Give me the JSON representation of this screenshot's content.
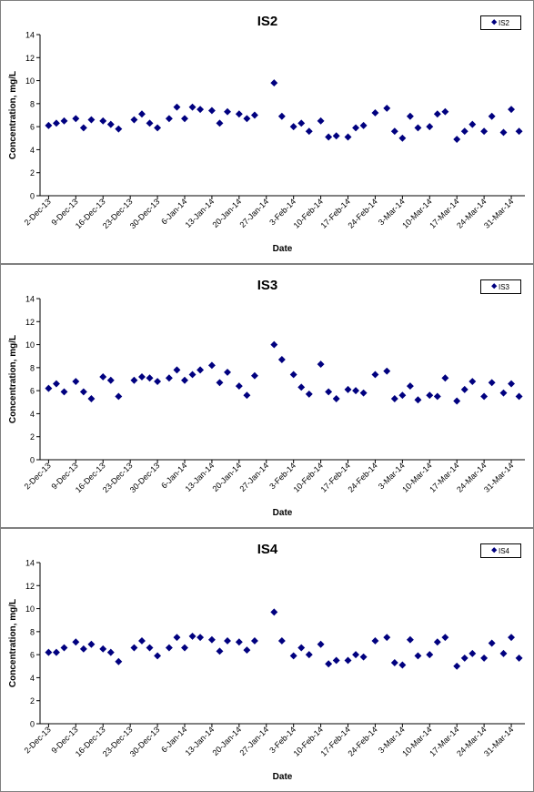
{
  "colors": {
    "marker": "#00007f",
    "axis": "#000000",
    "frame": "#808080"
  },
  "chart_data": [
    {
      "type": "scatter",
      "title": "IS2",
      "xlabel": "Date",
      "ylabel": "Concentration, mg/L",
      "legend": "IS2",
      "legend_position": "top-right",
      "grid": false,
      "ylim": [
        0,
        14
      ],
      "y_ticks": [
        "0",
        "2",
        "4",
        "6",
        "8",
        "10",
        "12",
        "14"
      ],
      "x_tick_labels": [
        "2-Dec-13",
        "9-Dec-13",
        "16-Dec-13",
        "23-Dec-13",
        "30-Dec-13",
        "6-Jan-14",
        "13-Jan-14",
        "20-Jan-14",
        "27-Jan-14",
        "3-Feb-14",
        "10-Feb-14",
        "17-Feb-14",
        "24-Feb-14",
        "3-Mar-14",
        "10-Mar-14",
        "17-Mar-14",
        "24-Mar-14",
        "31-Mar-14"
      ],
      "points": [
        [
          "2013-12-02",
          6.1
        ],
        [
          "2013-12-04",
          6.3
        ],
        [
          "2013-12-06",
          6.5
        ],
        [
          "2013-12-09",
          6.7
        ],
        [
          "2013-12-11",
          5.9
        ],
        [
          "2013-12-13",
          6.6
        ],
        [
          "2013-12-16",
          6.5
        ],
        [
          "2013-12-18",
          6.2
        ],
        [
          "2013-12-20",
          5.8
        ],
        [
          "2013-12-24",
          6.6
        ],
        [
          "2013-12-26",
          7.1
        ],
        [
          "2013-12-28",
          6.3
        ],
        [
          "2013-12-30",
          5.9
        ],
        [
          "2014-01-02",
          6.7
        ],
        [
          "2014-01-04",
          7.7
        ],
        [
          "2014-01-06",
          6.7
        ],
        [
          "2014-01-08",
          7.7
        ],
        [
          "2014-01-10",
          7.5
        ],
        [
          "2014-01-13",
          7.4
        ],
        [
          "2014-01-15",
          6.3
        ],
        [
          "2014-01-17",
          7.3
        ],
        [
          "2014-01-20",
          7.1
        ],
        [
          "2014-01-22",
          6.7
        ],
        [
          "2014-01-24",
          7.0
        ],
        [
          "2014-01-29",
          9.8
        ],
        [
          "2014-01-31",
          6.9
        ],
        [
          "2014-02-03",
          6.0
        ],
        [
          "2014-02-05",
          6.3
        ],
        [
          "2014-02-07",
          5.6
        ],
        [
          "2014-02-10",
          6.5
        ],
        [
          "2014-02-12",
          5.1
        ],
        [
          "2014-02-14",
          5.2
        ],
        [
          "2014-02-17",
          5.1
        ],
        [
          "2014-02-19",
          5.9
        ],
        [
          "2014-02-21",
          6.1
        ],
        [
          "2014-02-24",
          7.2
        ],
        [
          "2014-02-27",
          7.6
        ],
        [
          "2014-03-01",
          5.6
        ],
        [
          "2014-03-03",
          5.0
        ],
        [
          "2014-03-05",
          6.9
        ],
        [
          "2014-03-07",
          5.9
        ],
        [
          "2014-03-10",
          6.0
        ],
        [
          "2014-03-12",
          7.1
        ],
        [
          "2014-03-14",
          7.3
        ],
        [
          "2014-03-17",
          4.9
        ],
        [
          "2014-03-19",
          5.6
        ],
        [
          "2014-03-21",
          6.2
        ],
        [
          "2014-03-24",
          5.6
        ],
        [
          "2014-03-26",
          6.9
        ],
        [
          "2014-03-29",
          5.5
        ],
        [
          "2014-03-31",
          7.5
        ],
        [
          "2014-04-02",
          5.6
        ]
      ]
    },
    {
      "type": "scatter",
      "title": "IS3",
      "xlabel": "Date",
      "ylabel": "Concentration, mg/L",
      "legend": "IS3",
      "legend_position": "top-right",
      "grid": false,
      "ylim": [
        0,
        14
      ],
      "y_ticks": [
        "0",
        "2",
        "4",
        "6",
        "8",
        "10",
        "12",
        "14"
      ],
      "x_tick_labels": [
        "2-Dec-13",
        "9-Dec-13",
        "16-Dec-13",
        "23-Dec-13",
        "30-Dec-13",
        "6-Jan-14",
        "13-Jan-14",
        "20-Jan-14",
        "27-Jan-14",
        "3-Feb-14",
        "10-Feb-14",
        "17-Feb-14",
        "24-Feb-14",
        "3-Mar-14",
        "10-Mar-14",
        "17-Mar-14",
        "24-Mar-14",
        "31-Mar-14"
      ],
      "points": [
        [
          "2013-12-02",
          6.2
        ],
        [
          "2013-12-04",
          6.6
        ],
        [
          "2013-12-06",
          5.9
        ],
        [
          "2013-12-09",
          6.8
        ],
        [
          "2013-12-11",
          5.9
        ],
        [
          "2013-12-13",
          5.3
        ],
        [
          "2013-12-16",
          7.2
        ],
        [
          "2013-12-18",
          6.9
        ],
        [
          "2013-12-20",
          5.5
        ],
        [
          "2013-12-24",
          6.9
        ],
        [
          "2013-12-26",
          7.2
        ],
        [
          "2013-12-28",
          7.1
        ],
        [
          "2013-12-30",
          6.8
        ],
        [
          "2014-01-02",
          7.1
        ],
        [
          "2014-01-04",
          7.8
        ],
        [
          "2014-01-06",
          6.9
        ],
        [
          "2014-01-08",
          7.4
        ],
        [
          "2014-01-10",
          7.8
        ],
        [
          "2014-01-13",
          8.2
        ],
        [
          "2014-01-15",
          6.7
        ],
        [
          "2014-01-17",
          7.6
        ],
        [
          "2014-01-20",
          6.4
        ],
        [
          "2014-01-22",
          5.6
        ],
        [
          "2014-01-24",
          7.3
        ],
        [
          "2014-01-29",
          10.0
        ],
        [
          "2014-01-31",
          8.7
        ],
        [
          "2014-02-03",
          7.4
        ],
        [
          "2014-02-05",
          6.3
        ],
        [
          "2014-02-07",
          5.7
        ],
        [
          "2014-02-10",
          8.3
        ],
        [
          "2014-02-12",
          5.9
        ],
        [
          "2014-02-14",
          5.3
        ],
        [
          "2014-02-17",
          6.1
        ],
        [
          "2014-02-19",
          6.0
        ],
        [
          "2014-02-21",
          5.8
        ],
        [
          "2014-02-24",
          7.4
        ],
        [
          "2014-02-27",
          7.7
        ],
        [
          "2014-03-01",
          5.3
        ],
        [
          "2014-03-03",
          5.6
        ],
        [
          "2014-03-05",
          6.4
        ],
        [
          "2014-03-07",
          5.2
        ],
        [
          "2014-03-10",
          5.6
        ],
        [
          "2014-03-12",
          5.5
        ],
        [
          "2014-03-14",
          7.1
        ],
        [
          "2014-03-17",
          5.1
        ],
        [
          "2014-03-19",
          6.1
        ],
        [
          "2014-03-21",
          6.8
        ],
        [
          "2014-03-24",
          5.5
        ],
        [
          "2014-03-26",
          6.7
        ],
        [
          "2014-03-29",
          5.8
        ],
        [
          "2014-03-31",
          6.6
        ],
        [
          "2014-04-02",
          5.5
        ]
      ]
    },
    {
      "type": "scatter",
      "title": "IS4",
      "xlabel": "Date",
      "ylabel": "Concentration, mg/L",
      "legend": "IS4",
      "legend_position": "top-right",
      "grid": false,
      "ylim": [
        0,
        14
      ],
      "y_ticks": [
        "0",
        "2",
        "4",
        "6",
        "8",
        "10",
        "12",
        "14"
      ],
      "x_tick_labels": [
        "2-Dec-13",
        "9-Dec-13",
        "16-Dec-13",
        "23-Dec-13",
        "30-Dec-13",
        "6-Jan-14",
        "13-Jan-14",
        "20-Jan-14",
        "27-Jan-14",
        "3-Feb-14",
        "10-Feb-14",
        "17-Feb-14",
        "24-Feb-14",
        "3-Mar-14",
        "10-Mar-14",
        "17-Mar-14",
        "24-Mar-14",
        "31-Mar-14"
      ],
      "points": [
        [
          "2013-12-02",
          6.2
        ],
        [
          "2013-12-04",
          6.2
        ],
        [
          "2013-12-06",
          6.6
        ],
        [
          "2013-12-09",
          7.1
        ],
        [
          "2013-12-11",
          6.5
        ],
        [
          "2013-12-13",
          6.9
        ],
        [
          "2013-12-16",
          6.5
        ],
        [
          "2013-12-18",
          6.2
        ],
        [
          "2013-12-20",
          5.4
        ],
        [
          "2013-12-24",
          6.6
        ],
        [
          "2013-12-26",
          7.2
        ],
        [
          "2013-12-28",
          6.6
        ],
        [
          "2013-12-30",
          5.9
        ],
        [
          "2014-01-02",
          6.6
        ],
        [
          "2014-01-04",
          7.5
        ],
        [
          "2014-01-06",
          6.6
        ],
        [
          "2014-01-08",
          7.6
        ],
        [
          "2014-01-10",
          7.5
        ],
        [
          "2014-01-13",
          7.3
        ],
        [
          "2014-01-15",
          6.3
        ],
        [
          "2014-01-17",
          7.2
        ],
        [
          "2014-01-20",
          7.1
        ],
        [
          "2014-01-22",
          6.4
        ],
        [
          "2014-01-24",
          7.2
        ],
        [
          "2014-01-29",
          9.7
        ],
        [
          "2014-01-31",
          7.2
        ],
        [
          "2014-02-03",
          5.9
        ],
        [
          "2014-02-05",
          6.6
        ],
        [
          "2014-02-07",
          6.0
        ],
        [
          "2014-02-10",
          6.9
        ],
        [
          "2014-02-12",
          5.2
        ],
        [
          "2014-02-14",
          5.5
        ],
        [
          "2014-02-17",
          5.5
        ],
        [
          "2014-02-19",
          6.0
        ],
        [
          "2014-02-21",
          5.8
        ],
        [
          "2014-02-24",
          7.2
        ],
        [
          "2014-02-27",
          7.5
        ],
        [
          "2014-03-01",
          5.3
        ],
        [
          "2014-03-03",
          5.1
        ],
        [
          "2014-03-05",
          7.3
        ],
        [
          "2014-03-07",
          5.9
        ],
        [
          "2014-03-10",
          6.0
        ],
        [
          "2014-03-12",
          7.1
        ],
        [
          "2014-03-14",
          7.5
        ],
        [
          "2014-03-17",
          5.0
        ],
        [
          "2014-03-19",
          5.7
        ],
        [
          "2014-03-21",
          6.1
        ],
        [
          "2014-03-24",
          5.7
        ],
        [
          "2014-03-26",
          7.0
        ],
        [
          "2014-03-29",
          6.1
        ],
        [
          "2014-03-31",
          7.5
        ],
        [
          "2014-04-02",
          5.7
        ]
      ]
    }
  ]
}
